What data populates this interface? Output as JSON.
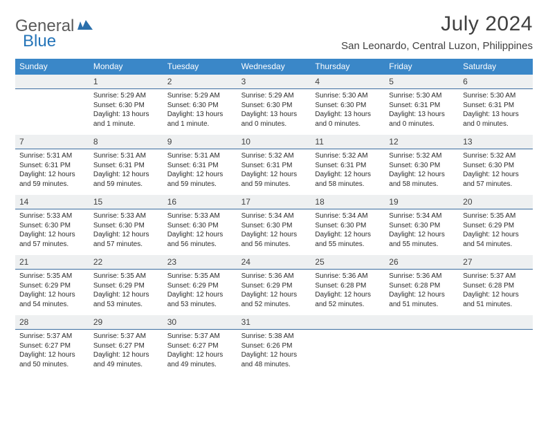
{
  "logo": {
    "general": "General",
    "blue": "Blue"
  },
  "title": "July 2024",
  "location": "San Leonardo, Central Luzon, Philippines",
  "colors": {
    "header_bg": "#3a87c8",
    "header_text": "#ffffff",
    "numrow_bg": "#eef0f1",
    "numrow_border": "#3a6c9e",
    "body_text": "#2a2a2a",
    "title_text": "#404040",
    "logo_gray": "#5a5a5a",
    "logo_blue": "#2474b8"
  },
  "day_names": [
    "Sunday",
    "Monday",
    "Tuesday",
    "Wednesday",
    "Thursday",
    "Friday",
    "Saturday"
  ],
  "weeks": [
    {
      "nums": [
        "",
        "1",
        "2",
        "3",
        "4",
        "5",
        "6"
      ],
      "cells": [
        null,
        {
          "sunrise": "5:29 AM",
          "sunset": "6:30 PM",
          "daylight": "13 hours and 1 minute."
        },
        {
          "sunrise": "5:29 AM",
          "sunset": "6:30 PM",
          "daylight": "13 hours and 1 minute."
        },
        {
          "sunrise": "5:29 AM",
          "sunset": "6:30 PM",
          "daylight": "13 hours and 0 minutes."
        },
        {
          "sunrise": "5:30 AM",
          "sunset": "6:30 PM",
          "daylight": "13 hours and 0 minutes."
        },
        {
          "sunrise": "5:30 AM",
          "sunset": "6:31 PM",
          "daylight": "13 hours and 0 minutes."
        },
        {
          "sunrise": "5:30 AM",
          "sunset": "6:31 PM",
          "daylight": "13 hours and 0 minutes."
        }
      ]
    },
    {
      "nums": [
        "7",
        "8",
        "9",
        "10",
        "11",
        "12",
        "13"
      ],
      "cells": [
        {
          "sunrise": "5:31 AM",
          "sunset": "6:31 PM",
          "daylight": "12 hours and 59 minutes."
        },
        {
          "sunrise": "5:31 AM",
          "sunset": "6:31 PM",
          "daylight": "12 hours and 59 minutes."
        },
        {
          "sunrise": "5:31 AM",
          "sunset": "6:31 PM",
          "daylight": "12 hours and 59 minutes."
        },
        {
          "sunrise": "5:32 AM",
          "sunset": "6:31 PM",
          "daylight": "12 hours and 59 minutes."
        },
        {
          "sunrise": "5:32 AM",
          "sunset": "6:31 PM",
          "daylight": "12 hours and 58 minutes."
        },
        {
          "sunrise": "5:32 AM",
          "sunset": "6:30 PM",
          "daylight": "12 hours and 58 minutes."
        },
        {
          "sunrise": "5:32 AM",
          "sunset": "6:30 PM",
          "daylight": "12 hours and 57 minutes."
        }
      ]
    },
    {
      "nums": [
        "14",
        "15",
        "16",
        "17",
        "18",
        "19",
        "20"
      ],
      "cells": [
        {
          "sunrise": "5:33 AM",
          "sunset": "6:30 PM",
          "daylight": "12 hours and 57 minutes."
        },
        {
          "sunrise": "5:33 AM",
          "sunset": "6:30 PM",
          "daylight": "12 hours and 57 minutes."
        },
        {
          "sunrise": "5:33 AM",
          "sunset": "6:30 PM",
          "daylight": "12 hours and 56 minutes."
        },
        {
          "sunrise": "5:34 AM",
          "sunset": "6:30 PM",
          "daylight": "12 hours and 56 minutes."
        },
        {
          "sunrise": "5:34 AM",
          "sunset": "6:30 PM",
          "daylight": "12 hours and 55 minutes."
        },
        {
          "sunrise": "5:34 AM",
          "sunset": "6:30 PM",
          "daylight": "12 hours and 55 minutes."
        },
        {
          "sunrise": "5:35 AM",
          "sunset": "6:29 PM",
          "daylight": "12 hours and 54 minutes."
        }
      ]
    },
    {
      "nums": [
        "21",
        "22",
        "23",
        "24",
        "25",
        "26",
        "27"
      ],
      "cells": [
        {
          "sunrise": "5:35 AM",
          "sunset": "6:29 PM",
          "daylight": "12 hours and 54 minutes."
        },
        {
          "sunrise": "5:35 AM",
          "sunset": "6:29 PM",
          "daylight": "12 hours and 53 minutes."
        },
        {
          "sunrise": "5:35 AM",
          "sunset": "6:29 PM",
          "daylight": "12 hours and 53 minutes."
        },
        {
          "sunrise": "5:36 AM",
          "sunset": "6:29 PM",
          "daylight": "12 hours and 52 minutes."
        },
        {
          "sunrise": "5:36 AM",
          "sunset": "6:28 PM",
          "daylight": "12 hours and 52 minutes."
        },
        {
          "sunrise": "5:36 AM",
          "sunset": "6:28 PM",
          "daylight": "12 hours and 51 minutes."
        },
        {
          "sunrise": "5:37 AM",
          "sunset": "6:28 PM",
          "daylight": "12 hours and 51 minutes."
        }
      ]
    },
    {
      "nums": [
        "28",
        "29",
        "30",
        "31",
        "",
        "",
        ""
      ],
      "cells": [
        {
          "sunrise": "5:37 AM",
          "sunset": "6:27 PM",
          "daylight": "12 hours and 50 minutes."
        },
        {
          "sunrise": "5:37 AM",
          "sunset": "6:27 PM",
          "daylight": "12 hours and 49 minutes."
        },
        {
          "sunrise": "5:37 AM",
          "sunset": "6:27 PM",
          "daylight": "12 hours and 49 minutes."
        },
        {
          "sunrise": "5:38 AM",
          "sunset": "6:26 PM",
          "daylight": "12 hours and 48 minutes."
        },
        null,
        null,
        null
      ]
    }
  ],
  "labels": {
    "sunrise": "Sunrise:",
    "sunset": "Sunset:",
    "daylight": "Daylight:"
  }
}
